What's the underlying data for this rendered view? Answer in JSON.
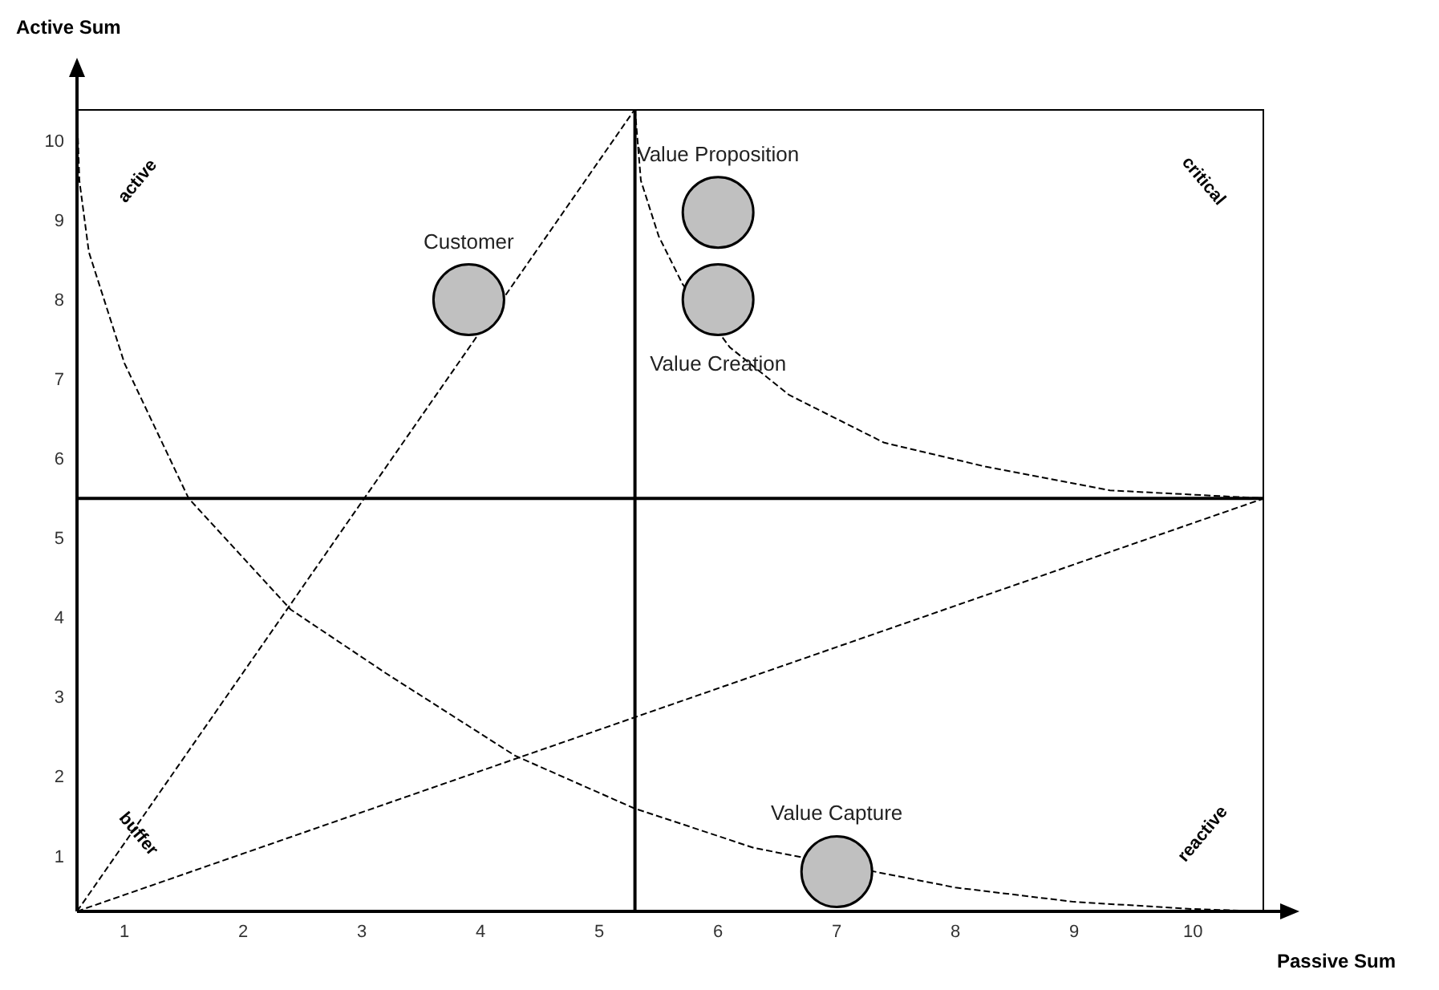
{
  "chart_data": {
    "type": "scatter",
    "xlabel": "Passive Sum",
    "ylabel": "Active Sum",
    "xlim": [
      0.6,
      10.6
    ],
    "ylim": [
      0.3,
      10.4
    ],
    "xticks": [
      1,
      2,
      3,
      4,
      5,
      6,
      7,
      8,
      9,
      10
    ],
    "yticks": [
      1,
      2,
      3,
      4,
      5,
      6,
      7,
      8,
      9,
      10
    ],
    "marker": "circle",
    "ref_lines": [
      {
        "axis": "x",
        "value": 5.3,
        "color": "#000000"
      },
      {
        "axis": "y",
        "value": 5.5,
        "color": "#000000"
      }
    ],
    "series": [
      {
        "type": "line",
        "color": "#000000",
        "line_style": "dashed",
        "marker": "none",
        "x": [
          0.6,
          5.3
        ],
        "values": [
          0.3,
          10.4
        ]
      },
      {
        "type": "line",
        "color": "#000000",
        "line_style": "dashed",
        "marker": "none",
        "x": [
          0.6,
          10.6
        ],
        "values": [
          0.3,
          5.5
        ]
      },
      {
        "type": "line",
        "color": "#000000",
        "line_style": "dashed",
        "marker": "none",
        "x": [
          0.6,
          0.62,
          0.7,
          1.0,
          1.54,
          2.4,
          3.2,
          4.29,
          5.29,
          6.3,
          8.0,
          9.0,
          10.0,
          10.6
        ],
        "values": [
          10.4,
          9.5,
          8.6,
          7.2,
          5.5,
          4.1,
          3.3,
          2.26,
          1.6,
          1.1,
          0.6,
          0.42,
          0.33,
          0.3
        ]
      },
      {
        "type": "line",
        "color": "#000000",
        "line_style": "dashed",
        "marker": "none",
        "x": [
          5.3,
          5.35,
          5.5,
          5.7,
          6.1,
          6.6,
          7.4,
          8.25,
          9.3,
          10.6
        ],
        "values": [
          10.4,
          9.5,
          8.8,
          8.2,
          7.4,
          6.8,
          6.2,
          5.9,
          5.6,
          5.5
        ]
      },
      {
        "name": "Customer",
        "color": "#c0c0c0",
        "x": [
          3.9
        ],
        "values": [
          8.0
        ]
      },
      {
        "name": "Value Proposition",
        "color": "#c0c0c0",
        "x": [
          6.0
        ],
        "values": [
          9.1
        ]
      },
      {
        "name": "Value Creation",
        "color": "#c0c0c0",
        "x": [
          6.0
        ],
        "values": [
          8.0
        ]
      },
      {
        "name": "Value Capture",
        "color": "#c0c0c0",
        "x": [
          7.0
        ],
        "values": [
          0.8
        ]
      }
    ],
    "annotations": [
      "active",
      "critical",
      "buffer",
      "reactive"
    ]
  }
}
